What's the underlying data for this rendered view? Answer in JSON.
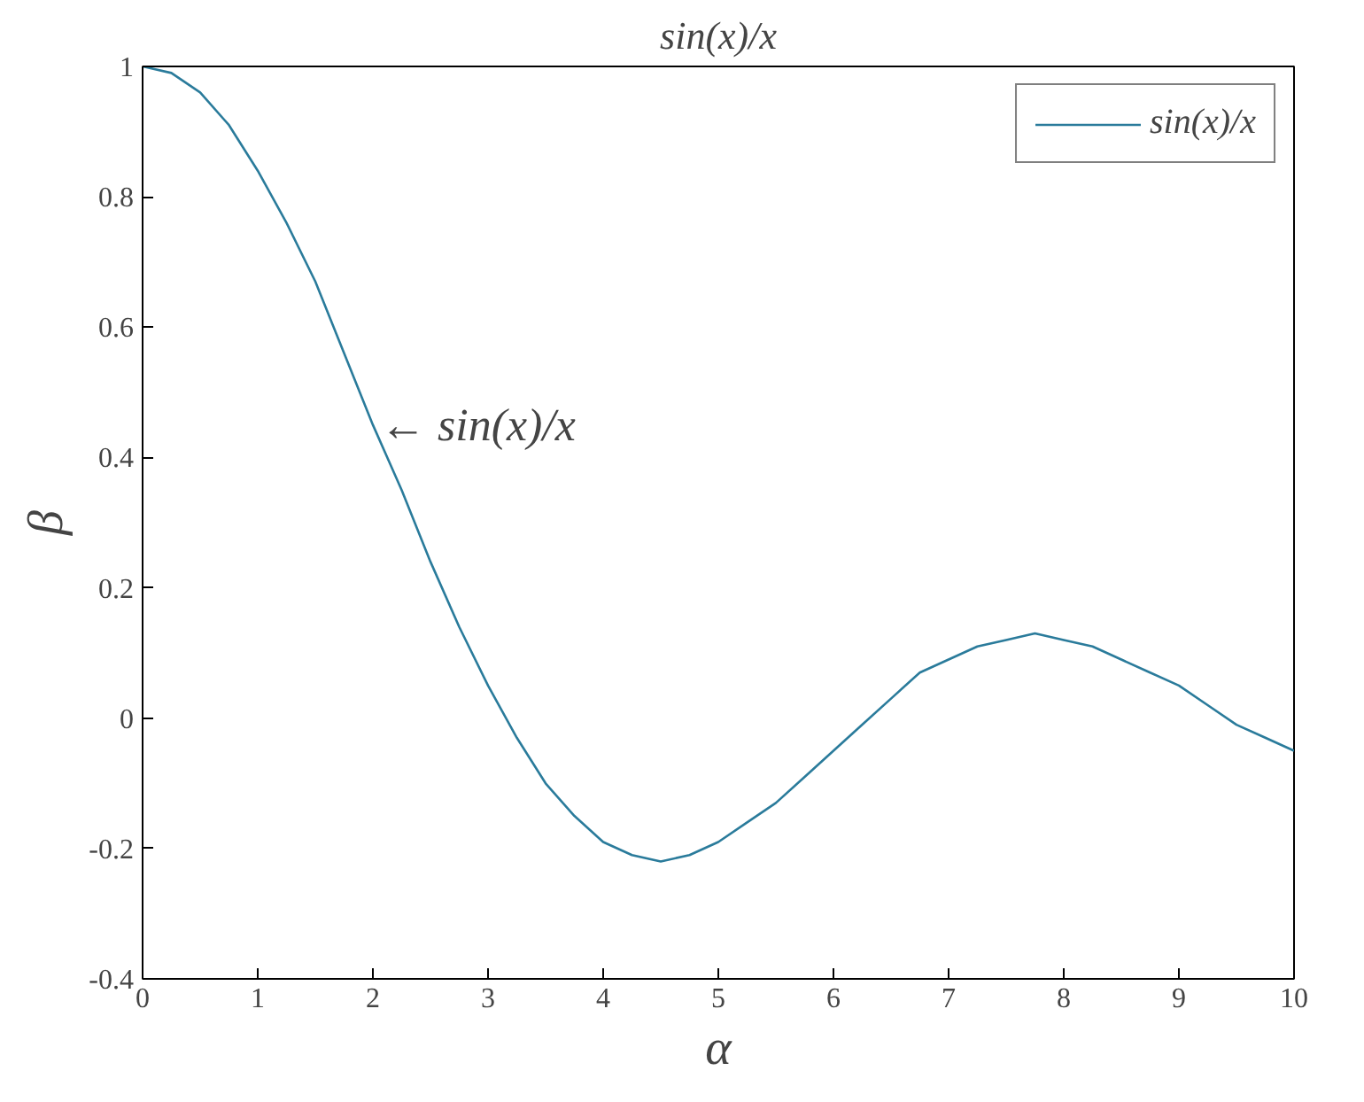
{
  "chart_data": {
    "type": "line",
    "title": "sin(x)/x",
    "xlabel": "α",
    "ylabel": "β",
    "x": [
      0,
      0.25,
      0.5,
      0.75,
      1,
      1.25,
      1.5,
      1.75,
      2,
      2.25,
      2.5,
      2.75,
      3,
      3.25,
      3.5,
      3.75,
      4,
      4.25,
      4.5,
      4.75,
      5,
      5.25,
      5.5,
      5.75,
      6,
      6.25,
      6.5,
      6.75,
      7,
      7.25,
      7.5,
      7.75,
      8,
      8.25,
      8.5,
      8.75,
      9,
      9.25,
      9.5,
      9.75,
      10
    ],
    "series": [
      {
        "name": "sin(x)/x",
        "color": "#2a7b9b",
        "values": [
          1,
          0.99,
          0.96,
          0.91,
          0.84,
          0.76,
          0.67,
          0.56,
          0.45,
          0.35,
          0.24,
          0.14,
          0.05,
          -0.03,
          -0.1,
          -0.15,
          -0.19,
          -0.21,
          -0.22,
          -0.21,
          -0.19,
          -0.16,
          -0.13,
          -0.09,
          -0.05,
          -0.01,
          0.03,
          0.07,
          0.09,
          0.11,
          0.12,
          0.13,
          0.12,
          0.11,
          0.09,
          0.07,
          0.05,
          0.02,
          -0.01,
          -0.03,
          -0.05
        ]
      }
    ],
    "xlim": [
      0,
      10
    ],
    "ylim": [
      -0.4,
      1
    ],
    "xticks": [
      0,
      1,
      2,
      3,
      4,
      5,
      6,
      7,
      8,
      9,
      10
    ],
    "yticks": [
      -0.4,
      -0.2,
      0,
      0.2,
      0.4,
      0.6,
      0.8,
      1
    ],
    "annotations": [
      {
        "text": "← sin(x)/x",
        "x": 2,
        "y": 0.45
      }
    ],
    "legend": "top right",
    "grid": false,
    "marker": "none",
    "line_style": "solid"
  }
}
